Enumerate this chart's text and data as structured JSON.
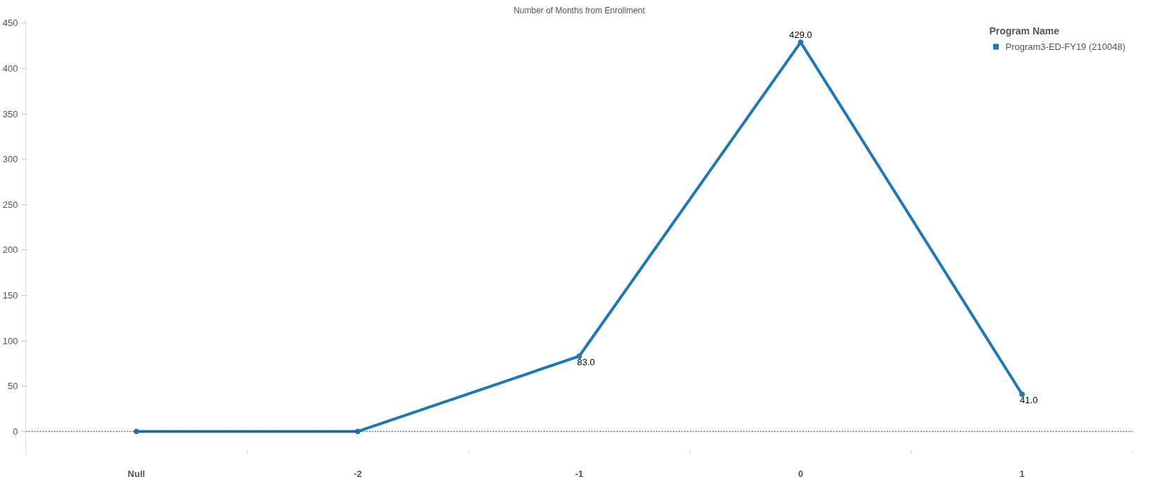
{
  "chart_data": {
    "type": "line",
    "title": "Number of Months from Enrollment",
    "categories": [
      "Null",
      "-2",
      "-1",
      "0",
      "1"
    ],
    "series": [
      {
        "name": "Program3-ED-FY19 (210048)",
        "color": "#1f77b4",
        "values": [
          0,
          0,
          83,
          429,
          41
        ],
        "value_labels": [
          null,
          null,
          "83.0",
          "429.0",
          "41.0"
        ]
      }
    ],
    "legend_title": "Program Name",
    "legend": "top right",
    "marker": "circle",
    "line_style": "solid",
    "grid": false,
    "ylim": [
      -25,
      455
    ],
    "yticks": [
      0,
      50,
      100,
      150,
      200,
      250,
      300,
      350,
      400,
      450
    ],
    "ref_lines": [
      {
        "axis": "y",
        "value": 0,
        "line_style": "dotted",
        "color": "#333333"
      }
    ]
  }
}
